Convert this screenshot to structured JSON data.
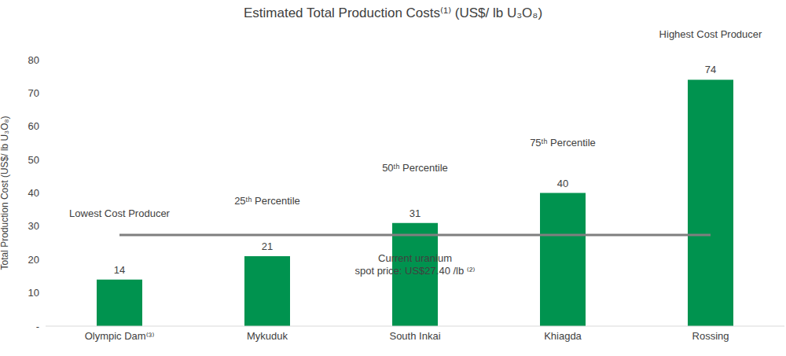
{
  "chart_data": {
    "type": "bar",
    "title": "Estimated Total Production Costs⁽¹⁾ (US$/ lb U₃O₈)",
    "y_label": "Total Production Cost (US$/ lb U₃O₈)",
    "categories": [
      "Olympic Dam⁽³⁾",
      "Mykuduk",
      "South Inkai",
      "Khiagda",
      "Rossing"
    ],
    "values": [
      14,
      21,
      31,
      40,
      74
    ],
    "color": "#00934f",
    "ylim": [
      0,
      80
    ],
    "yticks": [
      {
        "value": 0,
        "label": "-"
      },
      10,
      20,
      30,
      40,
      50,
      60,
      70,
      80
    ],
    "grid": false,
    "data_labels": true,
    "annotations": [
      "Lowest Cost Producer",
      "25ᵗʰ Percentile",
      "50ᵗʰ Percentile",
      "75ᵗʰ Percentile",
      "Highest Cost Producer"
    ],
    "spot_price": 27.4,
    "spot_price_label": [
      "Current uranium",
      "spot price: US$27.40 /lb ⁽²⁾"
    ]
  }
}
